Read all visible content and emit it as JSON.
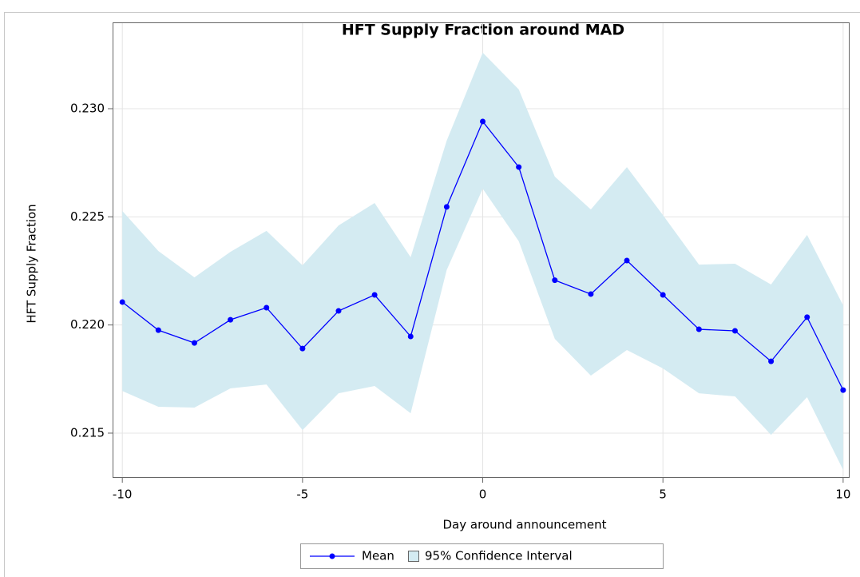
{
  "chart_data": {
    "type": "line",
    "title": "HFT Supply Fraction around MAD",
    "xlabel": "Day around announcement",
    "ylabel": "HFT Supply Fraction",
    "x": [
      -10,
      -9,
      -8,
      -7,
      -6,
      -5,
      -4,
      -3,
      -2,
      -1,
      0,
      1,
      2,
      3,
      4,
      5,
      6,
      7,
      8,
      9,
      10
    ],
    "series": [
      {
        "name": "Mean",
        "color": "#0000ff",
        "values": [
          0.22106,
          0.21976,
          0.21917,
          0.22024,
          0.2208,
          0.21891,
          0.22065,
          0.22139,
          0.21947,
          0.22546,
          0.22941,
          0.2273,
          0.22207,
          0.22143,
          0.22298,
          0.22139,
          0.2198,
          0.21973,
          0.21832,
          0.22036,
          0.21699
        ]
      }
    ],
    "bands": [
      {
        "name": "95% Confidence Interval",
        "color": "#d4ebf2",
        "upper": [
          0.22527,
          0.22342,
          0.2222,
          0.22338,
          0.22435,
          0.22276,
          0.2246,
          0.22564,
          0.22313,
          0.22852,
          0.23259,
          0.23089,
          0.22686,
          0.22534,
          0.2273,
          0.22508,
          0.22279,
          0.22283,
          0.22187,
          0.22416,
          0.22091
        ],
        "lower": [
          0.21695,
          0.21622,
          0.21618,
          0.21707,
          0.21725,
          0.21514,
          0.21684,
          0.21718,
          0.21592,
          0.22254,
          0.2263,
          0.22387,
          0.21936,
          0.21766,
          0.21884,
          0.21799,
          0.21684,
          0.2167,
          0.21492,
          0.21666,
          0.2133
        ]
      }
    ],
    "xlim": [
      -10.27,
      10.18
    ],
    "xticks": [
      -10,
      -5,
      0,
      5,
      10
    ],
    "ylim": [
      0.21293,
      0.23399
    ],
    "yticks": [
      0.215,
      {
        "value": 0.22,
        "label": "0.220"
      },
      0.225,
      {
        "value": 0.23,
        "label": "0.230"
      }
    ],
    "grid": true,
    "legend": "bottom"
  }
}
